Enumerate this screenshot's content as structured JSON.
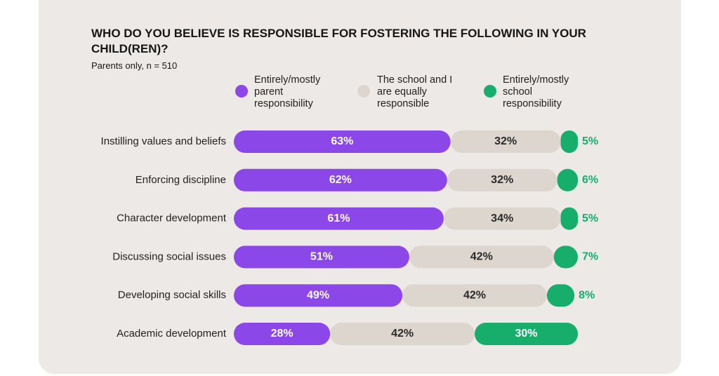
{
  "chart_data": {
    "type": "bar",
    "orientation": "horizontal",
    "stacked": true,
    "title": "WHO DO YOU BELIEVE IS RESPONSIBLE FOR FOSTERING THE FOLLOWING IN YOUR CHILD(REN)?",
    "subtitle": "Parents only, n = 510",
    "categories": [
      "Instilling values and beliefs",
      "Enforcing discipline",
      "Character development",
      "Discussing social issues",
      "Developing social skills",
      "Academic development"
    ],
    "series": [
      {
        "name": "Entirely/mostly parent responsibility",
        "color": "#8c47e9",
        "values": [
          63,
          62,
          61,
          51,
          49,
          28
        ],
        "value_labels": [
          "63%",
          "62%",
          "61%",
          "51%",
          "49%",
          "28%"
        ]
      },
      {
        "name": "The school and I are equally responsible",
        "color": "#ddd6cf",
        "values": [
          32,
          32,
          34,
          42,
          42,
          42
        ],
        "value_labels": [
          "32%",
          "32%",
          "34%",
          "42%",
          "42%",
          "42%"
        ]
      },
      {
        "name": "Entirely/mostly school responsibility",
        "color": "#17ad6b",
        "values": [
          5,
          6,
          5,
          7,
          8,
          30
        ],
        "value_labels": [
          "5%",
          "6%",
          "5%",
          "7%",
          "8%",
          "30%"
        ]
      }
    ]
  }
}
